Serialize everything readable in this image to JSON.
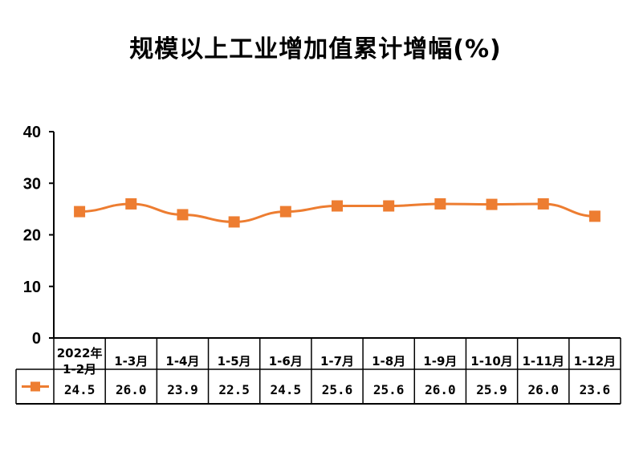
{
  "chart_data": {
    "type": "line",
    "title": "规模以上工业增加值累计增幅(%)",
    "categories": [
      "2022年\n1-2月",
      "1-3月",
      "1-4月",
      "1-5月",
      "1-6月",
      "1-7月",
      "1-8月",
      "1-9月",
      "1-10月",
      "1-11月",
      "1-12月"
    ],
    "value_labels": [
      "24.5",
      "26.0",
      "23.9",
      "22.5",
      "24.5",
      "25.6",
      "25.6",
      "26.0",
      "25.9",
      "26.0",
      "23.6"
    ],
    "series": [
      {
        "values": [
          24.5,
          26.0,
          23.9,
          22.5,
          24.5,
          25.6,
          25.6,
          26.0,
          25.9,
          26.0,
          23.6
        ],
        "color": "#ED7D31"
      }
    ],
    "yticks": [
      "0",
      "10",
      "20",
      "30",
      "40"
    ],
    "ylim": [
      0,
      40
    ],
    "grid": false,
    "legend": "data-table"
  }
}
